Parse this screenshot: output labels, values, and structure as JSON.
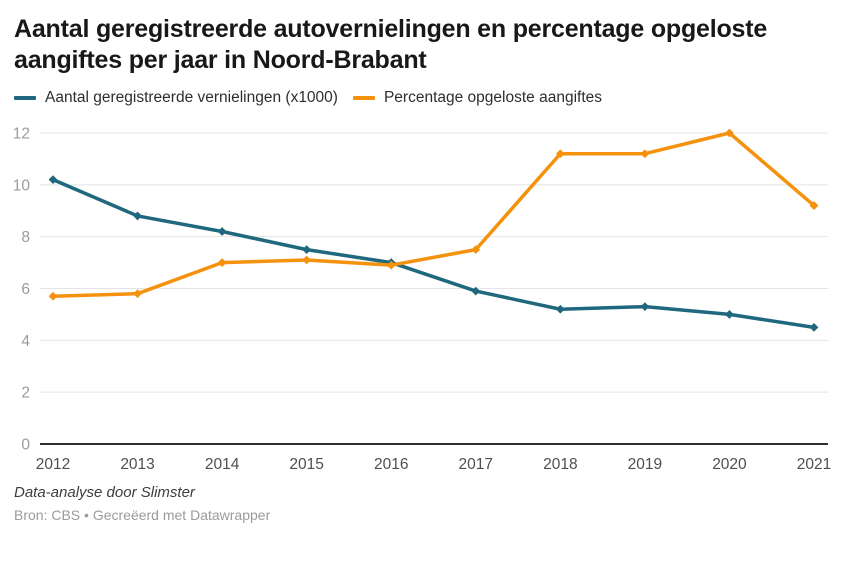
{
  "header": {
    "title": "Aantal geregistreerde autovernielingen en percentage opgeloste aangiftes per jaar in Noord-Brabant"
  },
  "chart_data": {
    "type": "line",
    "title": "Aantal geregistreerde autovernielingen en percentage opgeloste aangiftes per jaar in Noord-Brabant",
    "x": [
      2012,
      2013,
      2014,
      2015,
      2016,
      2017,
      2018,
      2019,
      2020,
      2021
    ],
    "series": [
      {
        "name": "Aantal geregistreerde vernielingen (x1000)",
        "color": "#20687e",
        "values": [
          10.2,
          8.8,
          8.2,
          7.5,
          7.0,
          5.9,
          5.2,
          5.3,
          5.0,
          4.5
        ]
      },
      {
        "name": "Percentage opgeloste aangiftes",
        "color": "#f4920e",
        "values": [
          5.7,
          5.8,
          7.0,
          7.1,
          6.9,
          7.5,
          11.2,
          11.2,
          12.0,
          9.2
        ]
      }
    ],
    "xlabel": "",
    "ylabel": "",
    "ylim": [
      0,
      12
    ],
    "yticks": [
      0,
      2,
      4,
      6,
      8,
      10,
      12
    ],
    "grid": true,
    "legend_position": "top",
    "marker": "diamond"
  },
  "style_colors": {
    "gridline": "#e4e4e4",
    "zero_axis": "#2f2f2f",
    "y_tick_label": "#9b9b9b",
    "x_tick_label": "#4f4f4f",
    "title": "#181818"
  },
  "footer": {
    "byline": "Data-analyse door Slimster",
    "source": "Bron: CBS • Gecreëerd met Datawrapper"
  }
}
